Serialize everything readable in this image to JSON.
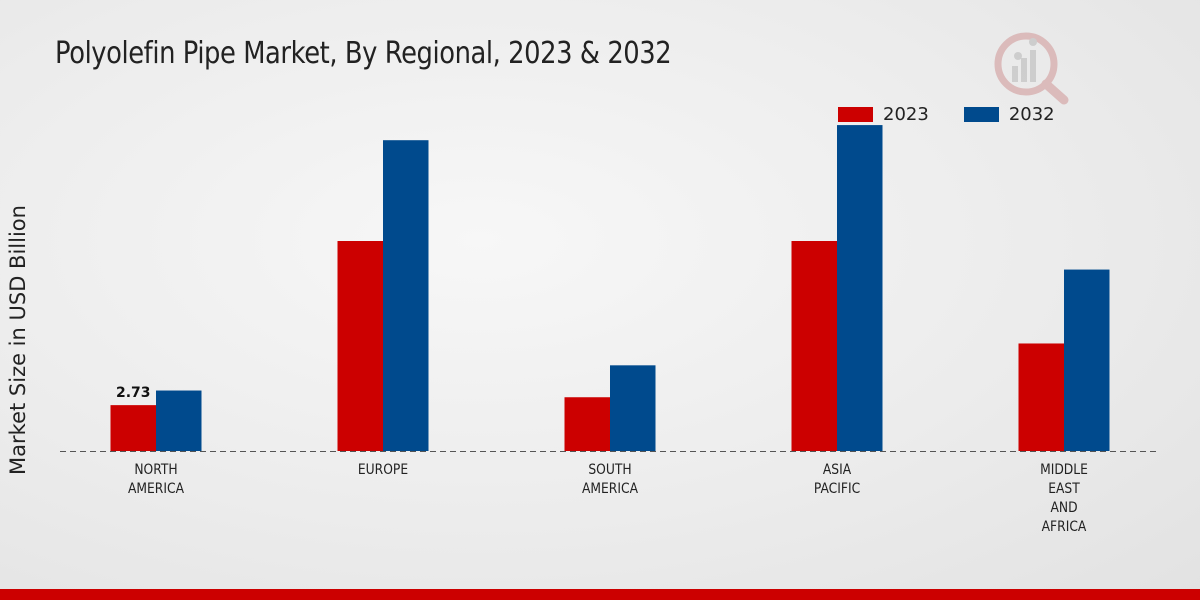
{
  "chart_data": {
    "type": "bar",
    "title": "Polyolefin Pipe Market, By Regional, 2023 & 2032",
    "xlabel": "",
    "ylabel": "Market Size in USD Billion",
    "ylim": [
      0,
      20
    ],
    "categories": [
      [
        "NORTH",
        "AMERICA"
      ],
      [
        "EUROPE"
      ],
      [
        "SOUTH",
        "AMERICA"
      ],
      [
        "ASIA",
        "PACIFIC"
      ],
      [
        "MIDDLE",
        "EAST",
        "AND",
        "AFRICA"
      ]
    ],
    "series": [
      {
        "name": "2023",
        "color": "#cc0000",
        "values": [
          2.73,
          12.5,
          3.2,
          12.5,
          6.4
        ]
      },
      {
        "name": "2032",
        "color": "#004a8d",
        "values": [
          3.6,
          18.5,
          5.1,
          19.4,
          10.8
        ]
      }
    ],
    "data_labels": [
      {
        "series": 0,
        "index": 0,
        "text": "2.73"
      }
    ],
    "legend": "top-right",
    "grid": false
  }
}
